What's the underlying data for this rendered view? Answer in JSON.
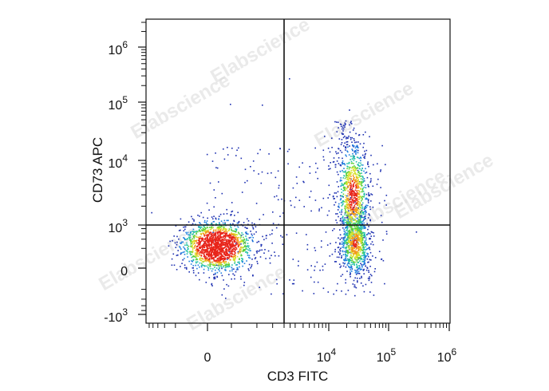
{
  "chart_data": {
    "type": "scatter",
    "title": "",
    "xlabel": "CD3 FITC",
    "ylabel": "CD73 APC",
    "x_scale": "biexponential",
    "y_scale": "biexponential",
    "xlim": [
      -3000,
      1000000
    ],
    "ylim": [
      -1000,
      3000000
    ],
    "x_ticks": [
      {
        "value": 0,
        "base": "0",
        "exp": ""
      },
      {
        "value": 10000,
        "base": "10",
        "exp": "4"
      },
      {
        "value": 100000,
        "base": "10",
        "exp": "5"
      },
      {
        "value": 1000000,
        "base": "10",
        "exp": "6"
      }
    ],
    "y_ticks": [
      {
        "value": -1000,
        "base": "-10",
        "exp": "3"
      },
      {
        "value": 0,
        "base": "0",
        "exp": ""
      },
      {
        "value": 1000,
        "base": "10",
        "exp": "3"
      },
      {
        "value": 10000,
        "base": "10",
        "exp": "4"
      },
      {
        "value": 100000,
        "base": "10",
        "exp": "5"
      },
      {
        "value": 1000000,
        "base": "10",
        "exp": "6"
      }
    ],
    "quadrant_gates": {
      "x": 2000,
      "y": 1000
    },
    "grid": false,
    "legend": "none",
    "coloring": "density (blue low → green → yellow → red high)",
    "populations": [
      {
        "label": "CD3- CD73- (major)",
        "x_center": 100,
        "y_center": 250,
        "relative_size": "largest, red core"
      },
      {
        "label": "CD3+ CD73+",
        "x_center": 25000,
        "y_center": 3000,
        "relative_size": "medium, green core"
      },
      {
        "label": "CD3+ CD73-",
        "x_center": 27000,
        "y_center": 300,
        "relative_size": "medium, green core"
      }
    ],
    "density_colors": [
      "#1c2fb0",
      "#1f7fe0",
      "#22c0a8",
      "#5ed13a",
      "#d7e22a",
      "#f39a1b",
      "#e8251a"
    ]
  },
  "watermark": "Elabscience"
}
